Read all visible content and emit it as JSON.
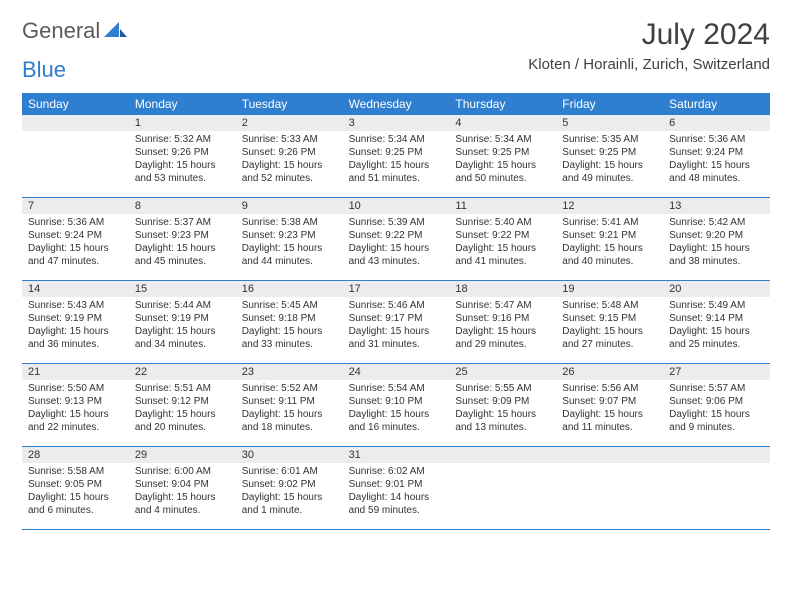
{
  "brand": {
    "name1": "General",
    "name2": "Blue"
  },
  "title": "July 2024",
  "location": "Kloten / Horainli, Zurich, Switzerland",
  "colors": {
    "header_bg": "#2f7fd0",
    "header_text": "#ffffff",
    "daynum_bg": "#ececec",
    "border": "#2f7fd0",
    "text": "#333333",
    "background": "#ffffff"
  },
  "typography": {
    "title_fontsize": 30,
    "location_fontsize": 15,
    "dayheader_fontsize": 12,
    "cell_fontsize": 10
  },
  "calendar": {
    "type": "table",
    "columns": [
      "Sunday",
      "Monday",
      "Tuesday",
      "Wednesday",
      "Thursday",
      "Friday",
      "Saturday"
    ],
    "weeks": [
      [
        {},
        {
          "n": "1",
          "sr": "Sunrise: 5:32 AM",
          "ss": "Sunset: 9:26 PM",
          "d1": "Daylight: 15 hours",
          "d2": "and 53 minutes."
        },
        {
          "n": "2",
          "sr": "Sunrise: 5:33 AM",
          "ss": "Sunset: 9:26 PM",
          "d1": "Daylight: 15 hours",
          "d2": "and 52 minutes."
        },
        {
          "n": "3",
          "sr": "Sunrise: 5:34 AM",
          "ss": "Sunset: 9:25 PM",
          "d1": "Daylight: 15 hours",
          "d2": "and 51 minutes."
        },
        {
          "n": "4",
          "sr": "Sunrise: 5:34 AM",
          "ss": "Sunset: 9:25 PM",
          "d1": "Daylight: 15 hours",
          "d2": "and 50 minutes."
        },
        {
          "n": "5",
          "sr": "Sunrise: 5:35 AM",
          "ss": "Sunset: 9:25 PM",
          "d1": "Daylight: 15 hours",
          "d2": "and 49 minutes."
        },
        {
          "n": "6",
          "sr": "Sunrise: 5:36 AM",
          "ss": "Sunset: 9:24 PM",
          "d1": "Daylight: 15 hours",
          "d2": "and 48 minutes."
        }
      ],
      [
        {
          "n": "7",
          "sr": "Sunrise: 5:36 AM",
          "ss": "Sunset: 9:24 PM",
          "d1": "Daylight: 15 hours",
          "d2": "and 47 minutes."
        },
        {
          "n": "8",
          "sr": "Sunrise: 5:37 AM",
          "ss": "Sunset: 9:23 PM",
          "d1": "Daylight: 15 hours",
          "d2": "and 45 minutes."
        },
        {
          "n": "9",
          "sr": "Sunrise: 5:38 AM",
          "ss": "Sunset: 9:23 PM",
          "d1": "Daylight: 15 hours",
          "d2": "and 44 minutes."
        },
        {
          "n": "10",
          "sr": "Sunrise: 5:39 AM",
          "ss": "Sunset: 9:22 PM",
          "d1": "Daylight: 15 hours",
          "d2": "and 43 minutes."
        },
        {
          "n": "11",
          "sr": "Sunrise: 5:40 AM",
          "ss": "Sunset: 9:22 PM",
          "d1": "Daylight: 15 hours",
          "d2": "and 41 minutes."
        },
        {
          "n": "12",
          "sr": "Sunrise: 5:41 AM",
          "ss": "Sunset: 9:21 PM",
          "d1": "Daylight: 15 hours",
          "d2": "and 40 minutes."
        },
        {
          "n": "13",
          "sr": "Sunrise: 5:42 AM",
          "ss": "Sunset: 9:20 PM",
          "d1": "Daylight: 15 hours",
          "d2": "and 38 minutes."
        }
      ],
      [
        {
          "n": "14",
          "sr": "Sunrise: 5:43 AM",
          "ss": "Sunset: 9:19 PM",
          "d1": "Daylight: 15 hours",
          "d2": "and 36 minutes."
        },
        {
          "n": "15",
          "sr": "Sunrise: 5:44 AM",
          "ss": "Sunset: 9:19 PM",
          "d1": "Daylight: 15 hours",
          "d2": "and 34 minutes."
        },
        {
          "n": "16",
          "sr": "Sunrise: 5:45 AM",
          "ss": "Sunset: 9:18 PM",
          "d1": "Daylight: 15 hours",
          "d2": "and 33 minutes."
        },
        {
          "n": "17",
          "sr": "Sunrise: 5:46 AM",
          "ss": "Sunset: 9:17 PM",
          "d1": "Daylight: 15 hours",
          "d2": "and 31 minutes."
        },
        {
          "n": "18",
          "sr": "Sunrise: 5:47 AM",
          "ss": "Sunset: 9:16 PM",
          "d1": "Daylight: 15 hours",
          "d2": "and 29 minutes."
        },
        {
          "n": "19",
          "sr": "Sunrise: 5:48 AM",
          "ss": "Sunset: 9:15 PM",
          "d1": "Daylight: 15 hours",
          "d2": "and 27 minutes."
        },
        {
          "n": "20",
          "sr": "Sunrise: 5:49 AM",
          "ss": "Sunset: 9:14 PM",
          "d1": "Daylight: 15 hours",
          "d2": "and 25 minutes."
        }
      ],
      [
        {
          "n": "21",
          "sr": "Sunrise: 5:50 AM",
          "ss": "Sunset: 9:13 PM",
          "d1": "Daylight: 15 hours",
          "d2": "and 22 minutes."
        },
        {
          "n": "22",
          "sr": "Sunrise: 5:51 AM",
          "ss": "Sunset: 9:12 PM",
          "d1": "Daylight: 15 hours",
          "d2": "and 20 minutes."
        },
        {
          "n": "23",
          "sr": "Sunrise: 5:52 AM",
          "ss": "Sunset: 9:11 PM",
          "d1": "Daylight: 15 hours",
          "d2": "and 18 minutes."
        },
        {
          "n": "24",
          "sr": "Sunrise: 5:54 AM",
          "ss": "Sunset: 9:10 PM",
          "d1": "Daylight: 15 hours",
          "d2": "and 16 minutes."
        },
        {
          "n": "25",
          "sr": "Sunrise: 5:55 AM",
          "ss": "Sunset: 9:09 PM",
          "d1": "Daylight: 15 hours",
          "d2": "and 13 minutes."
        },
        {
          "n": "26",
          "sr": "Sunrise: 5:56 AM",
          "ss": "Sunset: 9:07 PM",
          "d1": "Daylight: 15 hours",
          "d2": "and 11 minutes."
        },
        {
          "n": "27",
          "sr": "Sunrise: 5:57 AM",
          "ss": "Sunset: 9:06 PM",
          "d1": "Daylight: 15 hours",
          "d2": "and 9 minutes."
        }
      ],
      [
        {
          "n": "28",
          "sr": "Sunrise: 5:58 AM",
          "ss": "Sunset: 9:05 PM",
          "d1": "Daylight: 15 hours",
          "d2": "and 6 minutes."
        },
        {
          "n": "29",
          "sr": "Sunrise: 6:00 AM",
          "ss": "Sunset: 9:04 PM",
          "d1": "Daylight: 15 hours",
          "d2": "and 4 minutes."
        },
        {
          "n": "30",
          "sr": "Sunrise: 6:01 AM",
          "ss": "Sunset: 9:02 PM",
          "d1": "Daylight: 15 hours",
          "d2": "and 1 minute."
        },
        {
          "n": "31",
          "sr": "Sunrise: 6:02 AM",
          "ss": "Sunset: 9:01 PM",
          "d1": "Daylight: 14 hours",
          "d2": "and 59 minutes."
        },
        {},
        {},
        {}
      ]
    ]
  }
}
